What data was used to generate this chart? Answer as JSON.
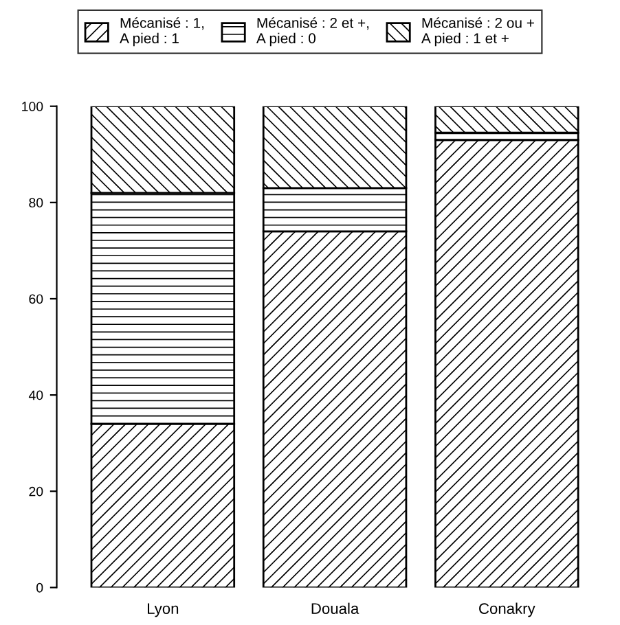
{
  "chart_data": {
    "type": "bar",
    "stacked": true,
    "categories": [
      "Lyon",
      "Douala",
      "Conakry"
    ],
    "series": [
      {
        "name": "Mécanisé : 1,\nA pied : 1",
        "color": "#000000",
        "values": [
          34,
          74,
          93
        ]
      },
      {
        "name": "Mécanisé : 2 et +,\nA pied : 0",
        "color": "#000000",
        "values": [
          48,
          9,
          1.5
        ]
      },
      {
        "name": "Mécanisé : 2 ou +\nA pied : 1 et +",
        "color": "#000000",
        "values": [
          18,
          17,
          5.5
        ]
      }
    ],
    "ylim": [
      0,
      100
    ],
    "yticks": [
      0,
      20,
      40,
      60,
      80,
      100
    ],
    "grid": false,
    "legend": "top"
  }
}
